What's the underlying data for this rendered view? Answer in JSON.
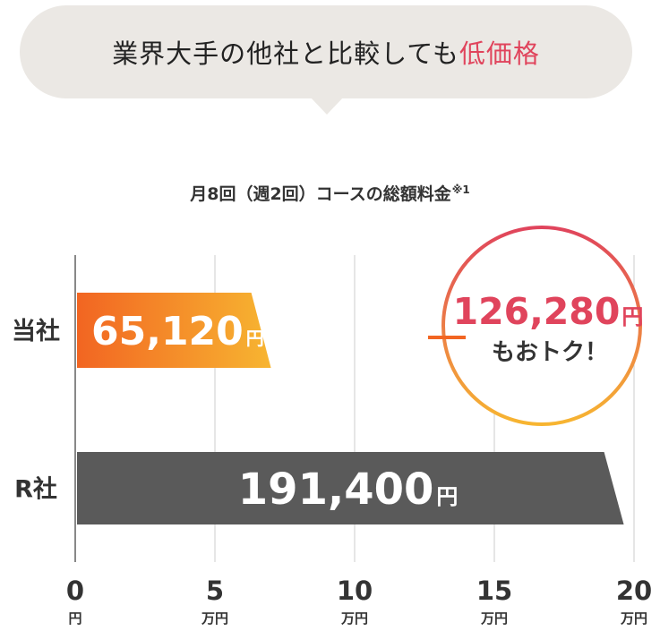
{
  "header": {
    "lead": "業界大手の他社と比較しても",
    "emphasis": "低価格"
  },
  "chart_data": {
    "type": "bar",
    "orientation": "horizontal",
    "title": "月8回（週2回）コースの総額料金",
    "title_note": "※1",
    "categories": [
      "当社",
      "R社"
    ],
    "values": [
      65120,
      191400
    ],
    "value_labels": [
      "65,120",
      "191,400"
    ],
    "value_unit": "円",
    "xlim": [
      0,
      200000
    ],
    "x_ticks": [
      {
        "value": 0,
        "number": "0",
        "unit": "円"
      },
      {
        "value": 50000,
        "number": "5",
        "unit": "万円"
      },
      {
        "value": 100000,
        "number": "10",
        "unit": "万円"
      },
      {
        "value": 150000,
        "number": "15",
        "unit": "万円"
      },
      {
        "value": 200000,
        "number": "20",
        "unit": "万円"
      }
    ],
    "grid": true,
    "callout": {
      "amount": "126,280",
      "unit": "円",
      "suffix": "もおトク！"
    },
    "colors": {
      "ours_start": "#f26522",
      "ours_end": "#f7b531",
      "competitor": "#5a5a5a",
      "accent": "#e0445c",
      "grid": "#cccccc"
    }
  }
}
